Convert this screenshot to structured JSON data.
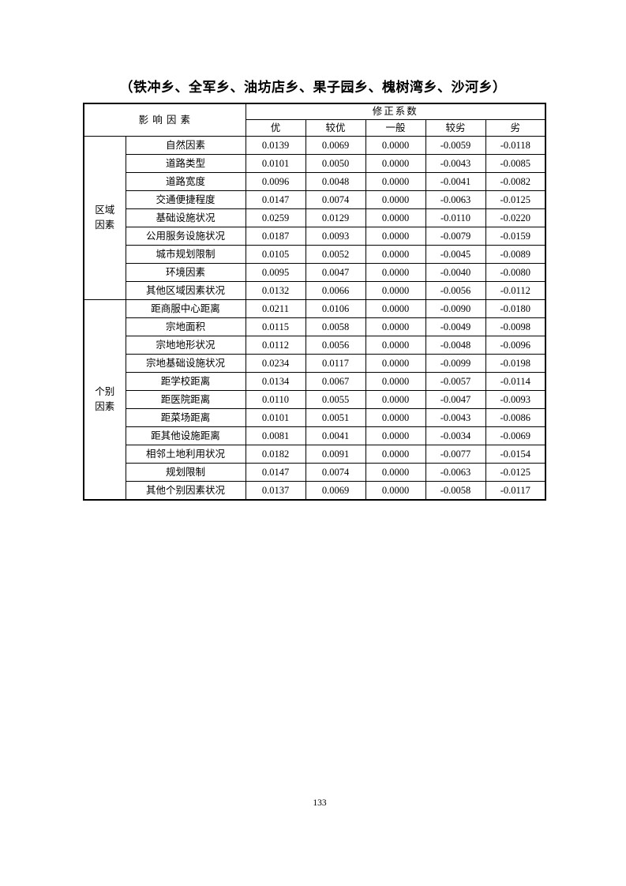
{
  "page": {
    "title": "（铁冲乡、全军乡、油坊店乡、果子园乡、槐树湾乡、沙河乡）",
    "page_number": "133"
  },
  "table": {
    "header": {
      "factor_label": "影 响 因 素",
      "coefficient_label": "修正系数",
      "grades": [
        "优",
        "较优",
        "一般",
        "较劣",
        "劣"
      ]
    },
    "groups": [
      {
        "label": "区域因素",
        "rows": [
          {
            "name": "自然因素",
            "values": [
              "0.0139",
              "0.0069",
              "0.0000",
              "-0.0059",
              "-0.0118"
            ]
          },
          {
            "name": "道路类型",
            "values": [
              "0.0101",
              "0.0050",
              "0.0000",
              "-0.0043",
              "-0.0085"
            ]
          },
          {
            "name": "道路宽度",
            "values": [
              "0.0096",
              "0.0048",
              "0.0000",
              "-0.0041",
              "-0.0082"
            ]
          },
          {
            "name": "交通便捷程度",
            "values": [
              "0.0147",
              "0.0074",
              "0.0000",
              "-0.0063",
              "-0.0125"
            ]
          },
          {
            "name": "基础设施状况",
            "values": [
              "0.0259",
              "0.0129",
              "0.0000",
              "-0.0110",
              "-0.0220"
            ]
          },
          {
            "name": "公用服务设施状况",
            "values": [
              "0.0187",
              "0.0093",
              "0.0000",
              "-0.0079",
              "-0.0159"
            ]
          },
          {
            "name": "城市规划限制",
            "values": [
              "0.0105",
              "0.0052",
              "0.0000",
              "-0.0045",
              "-0.0089"
            ]
          },
          {
            "name": "环境因素",
            "values": [
              "0.0095",
              "0.0047",
              "0.0000",
              "-0.0040",
              "-0.0080"
            ]
          },
          {
            "name": "其他区域因素状况",
            "values": [
              "0.0132",
              "0.0066",
              "0.0000",
              "-0.0056",
              "-0.0112"
            ]
          }
        ]
      },
      {
        "label": "个别因素",
        "rows": [
          {
            "name": "距商服中心距离",
            "values": [
              "0.0211",
              "0.0106",
              "0.0000",
              "-0.0090",
              "-0.0180"
            ]
          },
          {
            "name": "宗地面积",
            "values": [
              "0.0115",
              "0.0058",
              "0.0000",
              "-0.0049",
              "-0.0098"
            ]
          },
          {
            "name": "宗地地形状况",
            "values": [
              "0.0112",
              "0.0056",
              "0.0000",
              "-0.0048",
              "-0.0096"
            ]
          },
          {
            "name": "宗地基础设施状况",
            "values": [
              "0.0234",
              "0.0117",
              "0.0000",
              "-0.0099",
              "-0.0198"
            ]
          },
          {
            "name": "距学校距离",
            "values": [
              "0.0134",
              "0.0067",
              "0.0000",
              "-0.0057",
              "-0.0114"
            ]
          },
          {
            "name": "距医院距离",
            "values": [
              "0.0110",
              "0.0055",
              "0.0000",
              "-0.0047",
              "-0.0093"
            ]
          },
          {
            "name": "距菜场距离",
            "values": [
              "0.0101",
              "0.0051",
              "0.0000",
              "-0.0043",
              "-0.0086"
            ]
          },
          {
            "name": "距其他设施距离",
            "values": [
              "0.0081",
              "0.0041",
              "0.0000",
              "-0.0034",
              "-0.0069"
            ]
          },
          {
            "name": "相邻土地利用状况",
            "values": [
              "0.0182",
              "0.0091",
              "0.0000",
              "-0.0077",
              "-0.0154"
            ]
          },
          {
            "name": "规划限制",
            "values": [
              "0.0147",
              "0.0074",
              "0.0000",
              "-0.0063",
              "-0.0125"
            ]
          },
          {
            "name": "其他个别因素状况",
            "values": [
              "0.0137",
              "0.0069",
              "0.0000",
              "-0.0058",
              "-0.0117"
            ]
          }
        ]
      }
    ]
  }
}
